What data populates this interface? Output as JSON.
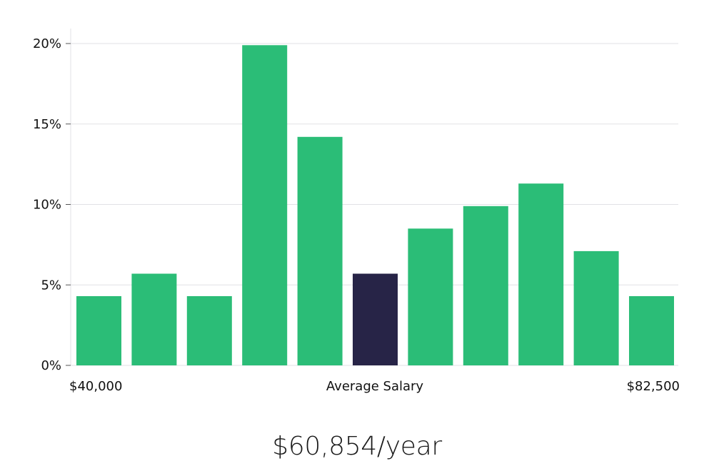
{
  "chart_data": {
    "type": "bar",
    "title": "",
    "xlabel": "Average Salary",
    "ylabel": "",
    "x_range_labels": {
      "left": "$40,000",
      "right": "$82,500"
    },
    "ylim": [
      0,
      21
    ],
    "yticks": [
      0,
      5,
      10,
      15,
      20
    ],
    "ytick_labels": [
      "0%",
      "5%",
      "10%",
      "15%",
      "20%"
    ],
    "values": [
      4.3,
      5.7,
      4.3,
      19.9,
      14.2,
      5.7,
      8.5,
      9.9,
      11.3,
      7.1,
      4.3
    ],
    "highlight_index": 5,
    "colors": {
      "bar": "#2bbd77",
      "highlight": "#272447",
      "grid": "#e2e2e6",
      "axis": "#e2e2e6"
    },
    "grid": true
  },
  "summary": {
    "average_salary": "$60,854/year"
  }
}
